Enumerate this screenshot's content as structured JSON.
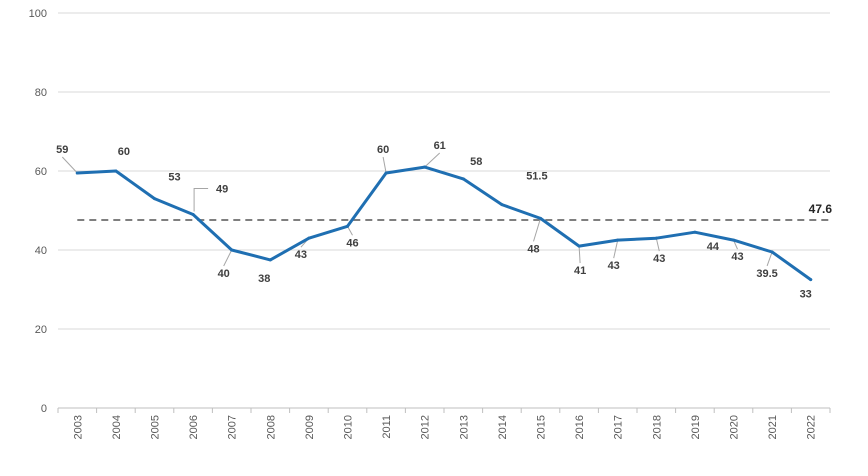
{
  "chart_data": {
    "type": "line",
    "title": "",
    "xlabel": "",
    "ylabel": "",
    "ylim": [
      0,
      100
    ],
    "yticks": [
      0,
      20,
      40,
      60,
      80,
      100
    ],
    "grid": true,
    "legend": "none",
    "categories": [
      "2003",
      "2004",
      "2005",
      "2006",
      "2007",
      "2008",
      "2009",
      "2010",
      "2011",
      "2012",
      "2013",
      "2014",
      "2015",
      "2016",
      "2017",
      "2018",
      "2019",
      "2020",
      "2021",
      "2022"
    ],
    "series": [
      {
        "name": "",
        "color": "#1f6fb2",
        "values": [
          59.5,
          60,
          53,
          49,
          40,
          37.5,
          43,
          46,
          59.5,
          61,
          58,
          51.5,
          48,
          41,
          42.5,
          43,
          44.5,
          42.5,
          39.5,
          32.5
        ],
        "labels": [
          "59",
          "60",
          "53",
          "49",
          "40",
          "38",
          "43",
          "46",
          "60",
          "61",
          "58",
          "51.5",
          "48",
          "41",
          "43",
          "43",
          "44",
          "43",
          "39.5",
          "33"
        ]
      }
    ],
    "reference_line": {
      "value": 47.6,
      "label": "47.6",
      "color": "#7f7f7f",
      "style": "dashed"
    }
  }
}
